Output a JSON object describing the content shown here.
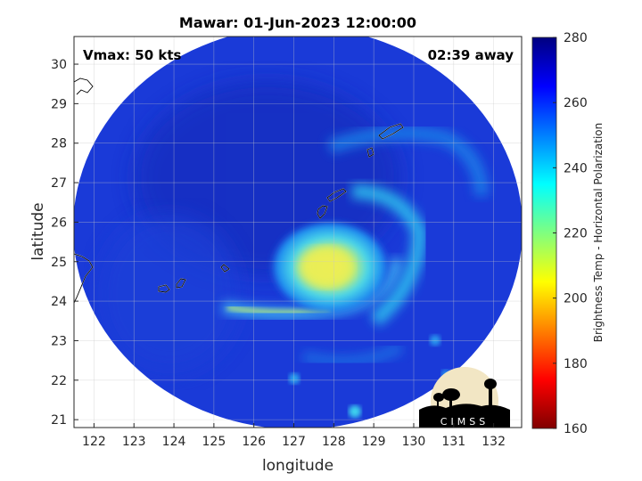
{
  "title": "Mawar: 01-Jun-2023 12:00:00",
  "vmax_label": "Vmax: 50 kts",
  "away_label": "02:39 away",
  "xlabel": "longitude",
  "ylabel": "latitude",
  "x_ticks": [
    "122",
    "123",
    "124",
    "125",
    "126",
    "127",
    "128",
    "129",
    "130",
    "131",
    "132"
  ],
  "y_ticks": [
    "21",
    "22",
    "23",
    "24",
    "25",
    "26",
    "27",
    "28",
    "29",
    "30"
  ],
  "colorbar": {
    "label": "Brightness Temp - Horizontal Polarization",
    "ticks": [
      "160",
      "180",
      "200",
      "220",
      "240",
      "260",
      "280"
    ],
    "range": [
      160,
      280
    ],
    "colormap": "jet"
  },
  "logo": {
    "text": "CIMSS"
  },
  "chart_data": {
    "type": "heatmap",
    "title": "Mawar: 01-Jun-2023 12:00:00",
    "xlabel": "longitude",
    "ylabel": "latitude",
    "xlim": [
      121.5,
      132.7
    ],
    "ylim": [
      20.8,
      30.7
    ],
    "clim": [
      160,
      280
    ],
    "storm_center": [
      128.0,
      25.0
    ],
    "background_tb": 262,
    "band_tb": 248,
    "min_core_tb": 205
  },
  "colors": {
    "ring": "#1e40e0",
    "background": "#1a39d6",
    "eyewall": "#e6e84a"
  }
}
